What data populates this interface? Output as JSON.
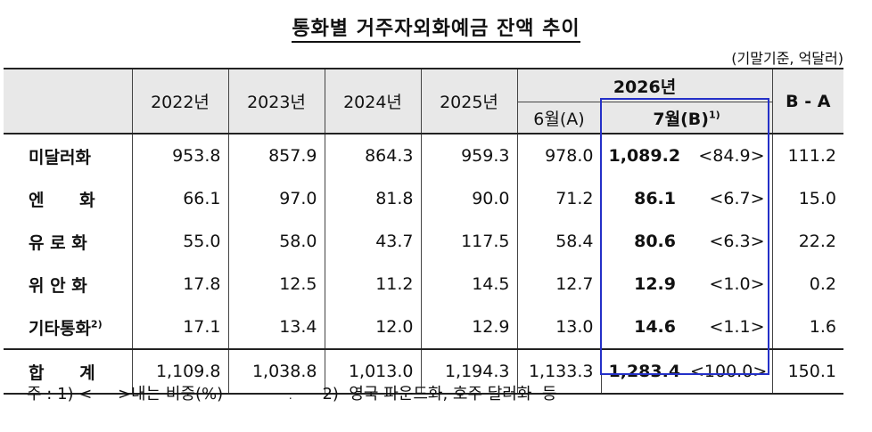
{
  "title": "통화별 거주자외화예금 잔액 추이",
  "unit_note": "(기말기준, 억달러)",
  "header": {
    "years": [
      "2022년",
      "2023년",
      "2024년",
      "2025년"
    ],
    "year_2026": "2026년",
    "june": "6월(A)",
    "july": "7월(B)",
    "july_sup": "1)",
    "diff": "B - A"
  },
  "rows": [
    {
      "label": "미달러화",
      "v2022": "953.8",
      "v2023": "857.9",
      "v2024": "864.3",
      "v2025": "959.3",
      "jun": "978.0",
      "jul": "1,089.2",
      "share": "<84.9>",
      "diff": "111.2"
    },
    {
      "label": "엔      화",
      "v2022": "66.1",
      "v2023": "97.0",
      "v2024": "81.8",
      "v2025": "90.0",
      "jun": "71.2",
      "jul": "86.1",
      "share": "<6.7>",
      "diff": "15.0"
    },
    {
      "label": "유 로 화",
      "v2022": "55.0",
      "v2023": "58.0",
      "v2024": "43.7",
      "v2025": "117.5",
      "jun": "58.4",
      "jul": "80.6",
      "share": "<6.3>",
      "diff": "22.2"
    },
    {
      "label": "위 안 화",
      "v2022": "17.8",
      "v2023": "12.5",
      "v2024": "11.2",
      "v2025": "14.5",
      "jun": "12.7",
      "jul": "12.9",
      "share": "<1.0>",
      "diff": "0.2"
    },
    {
      "label": "기타통화",
      "label_sup": "2)",
      "v2022": "17.1",
      "v2023": "13.4",
      "v2024": "12.0",
      "v2025": "12.9",
      "jun": "13.0",
      "jul": "14.6",
      "share": "<1.1>",
      "diff": "1.6"
    }
  ],
  "total": {
    "label": "합      계",
    "v2022": "1,109.8",
    "v2023": "1,038.8",
    "v2024": "1,013.0",
    "v2025": "1,194.3",
    "jun": "1,133.3",
    "jul": "1,283.4",
    "share": "<100.0>",
    "diff": "150.1"
  },
  "notes": {
    "note1": "주 : 1) <     >내는 비중(%)",
    "dot": ".",
    "note2": "2)  영국 파운드화, 호주 달러화  등"
  }
}
